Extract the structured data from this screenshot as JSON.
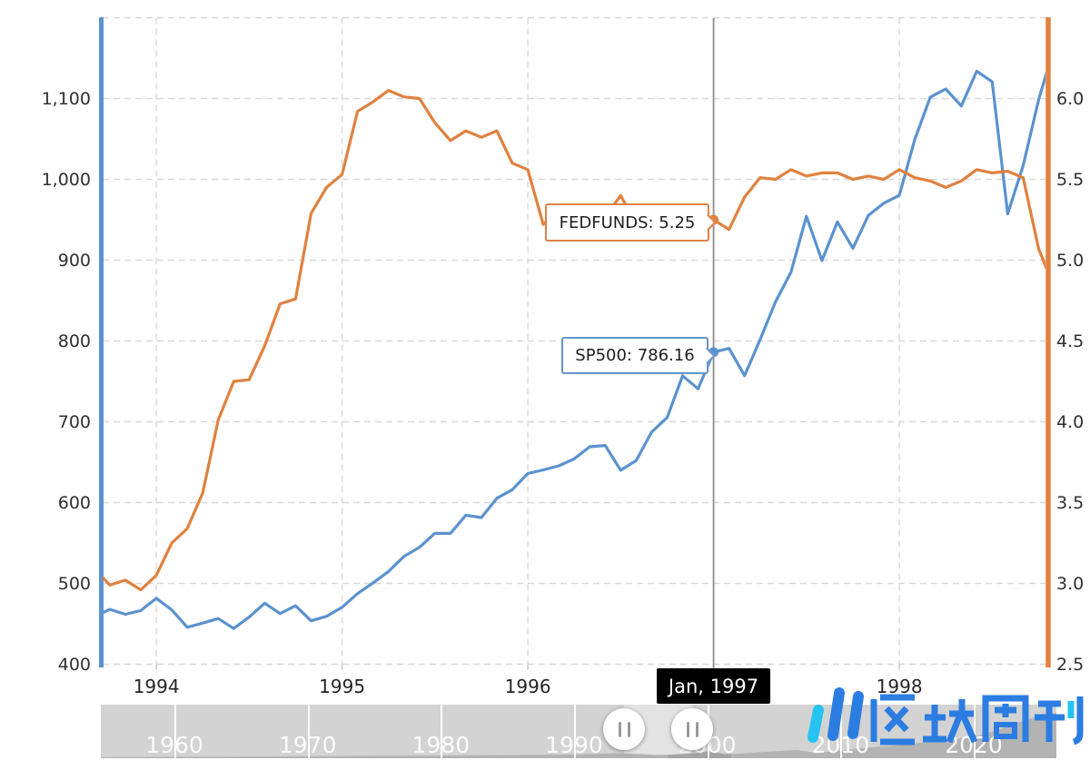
{
  "chart": {
    "tooltips": {
      "fedfunds_label": "FEDFUNDS: 5.25",
      "sp500_label": "SP500: 786.16"
    },
    "cursor": {
      "label": "Jan, 1997",
      "month": "1997-01",
      "sp500": 786.16,
      "fedfunds": 5.25
    }
  },
  "chart_data": {
    "type": "line",
    "title": "",
    "grid": "dashed",
    "x": [
      "1993-09",
      "1993-10",
      "1993-11",
      "1993-12",
      "1994-01",
      "1994-02",
      "1994-03",
      "1994-04",
      "1994-05",
      "1994-06",
      "1994-07",
      "1994-08",
      "1994-09",
      "1994-10",
      "1994-11",
      "1994-12",
      "1995-01",
      "1995-02",
      "1995-03",
      "1995-04",
      "1995-05",
      "1995-06",
      "1995-07",
      "1995-08",
      "1995-09",
      "1995-10",
      "1995-11",
      "1995-12",
      "1996-01",
      "1996-02",
      "1996-03",
      "1996-04",
      "1996-05",
      "1996-06",
      "1996-07",
      "1996-08",
      "1996-09",
      "1996-10",
      "1996-11",
      "1996-12",
      "1997-01",
      "1997-02",
      "1997-03",
      "1997-04",
      "1997-05",
      "1997-06",
      "1997-07",
      "1997-08",
      "1997-09",
      "1997-10",
      "1997-11",
      "1997-12",
      "1998-01",
      "1998-02",
      "1998-03",
      "1998-04",
      "1998-05",
      "1998-06",
      "1998-07",
      "1998-08",
      "1998-09",
      "1998-10",
      "1998-11"
    ],
    "series": [
      {
        "name": "SP500",
        "axis": "left",
        "color": "#5b92cf",
        "values": [
          458.93,
          467.83,
          461.79,
          466.45,
          481.61,
          467.14,
          445.77,
          450.91,
          456.5,
          444.27,
          458.26,
          475.49,
          462.69,
          472.35,
          453.69,
          459.27,
          470.42,
          487.39,
          500.71,
          514.71,
          533.4,
          544.75,
          562.06,
          561.88,
          584.41,
          581.5,
          605.37,
          615.93,
          636.02,
          640.43,
          645.5,
          654.17,
          669.12,
          670.63,
          639.95,
          651.99,
          687.31,
          705.27,
          757.02,
          740.74,
          786.16,
          790.82,
          757.12,
          801.34,
          848.28,
          885.14,
          954.29,
          899.47,
          947.28,
          914.62,
          955.4,
          970.43,
          980.28,
          1049.34,
          1101.75,
          1111.75,
          1090.82,
          1133.84,
          1120.67,
          957.28,
          1017.01,
          1098.67,
          1163.63
        ]
      },
      {
        "name": "FEDFUNDS",
        "axis": "right",
        "color": "#e0813f",
        "values": [
          3.09,
          2.99,
          3.02,
          2.96,
          3.05,
          3.25,
          3.34,
          3.56,
          4.01,
          4.25,
          4.26,
          4.47,
          4.73,
          4.76,
          5.29,
          5.45,
          5.53,
          5.92,
          5.98,
          6.05,
          6.01,
          6.0,
          5.85,
          5.74,
          5.8,
          5.76,
          5.8,
          5.6,
          5.56,
          5.22,
          5.31,
          5.22,
          5.24,
          5.27,
          5.4,
          5.22,
          5.3,
          5.24,
          5.31,
          5.29,
          5.25,
          5.19,
          5.39,
          5.51,
          5.5,
          5.56,
          5.52,
          5.54,
          5.54,
          5.5,
          5.52,
          5.5,
          5.56,
          5.51,
          5.49,
          5.45,
          5.49,
          5.56,
          5.54,
          5.55,
          5.51,
          5.07,
          4.83
        ]
      }
    ],
    "left_axis": {
      "min": 400,
      "max": 1100,
      "step": 100,
      "ticks": [
        "400",
        "500",
        "600",
        "700",
        "800",
        "900",
        "1,000",
        "1,100"
      ]
    },
    "right_axis": {
      "min": 2.5,
      "max": 6.0,
      "step": 0.5,
      "ticks": [
        "2.5",
        "3.0",
        "3.5",
        "4.0",
        "4.5",
        "5.0",
        "5.5",
        "6.0"
      ]
    },
    "x_axis": {
      "tick_labels": [
        "1994",
        "1995",
        "1996",
        "1997",
        "1998"
      ],
      "tick_years": [
        1994,
        1995,
        1996,
        1997,
        1998
      ]
    },
    "legend": "none"
  },
  "timeline": {
    "decade_labels": [
      "1960",
      "1970",
      "1980",
      "1990",
      "2000",
      "2010",
      "2020"
    ]
  },
  "logo": {
    "text": "区块周刊",
    "icon": "bar-chart-logo-icon"
  },
  "colors": {
    "sp500": "#5b92cf",
    "fedfunds": "#e0813f",
    "grid": "#d8d8d8",
    "cursor_line": "#8f8f8f",
    "cursor_label_bg": "#000000",
    "timeline_bar": "#d3d3d3",
    "timeline_silhouette": "#b3b3b3",
    "logo_blue": "#2b7de2",
    "logo_cyan": "#25c3f2"
  }
}
